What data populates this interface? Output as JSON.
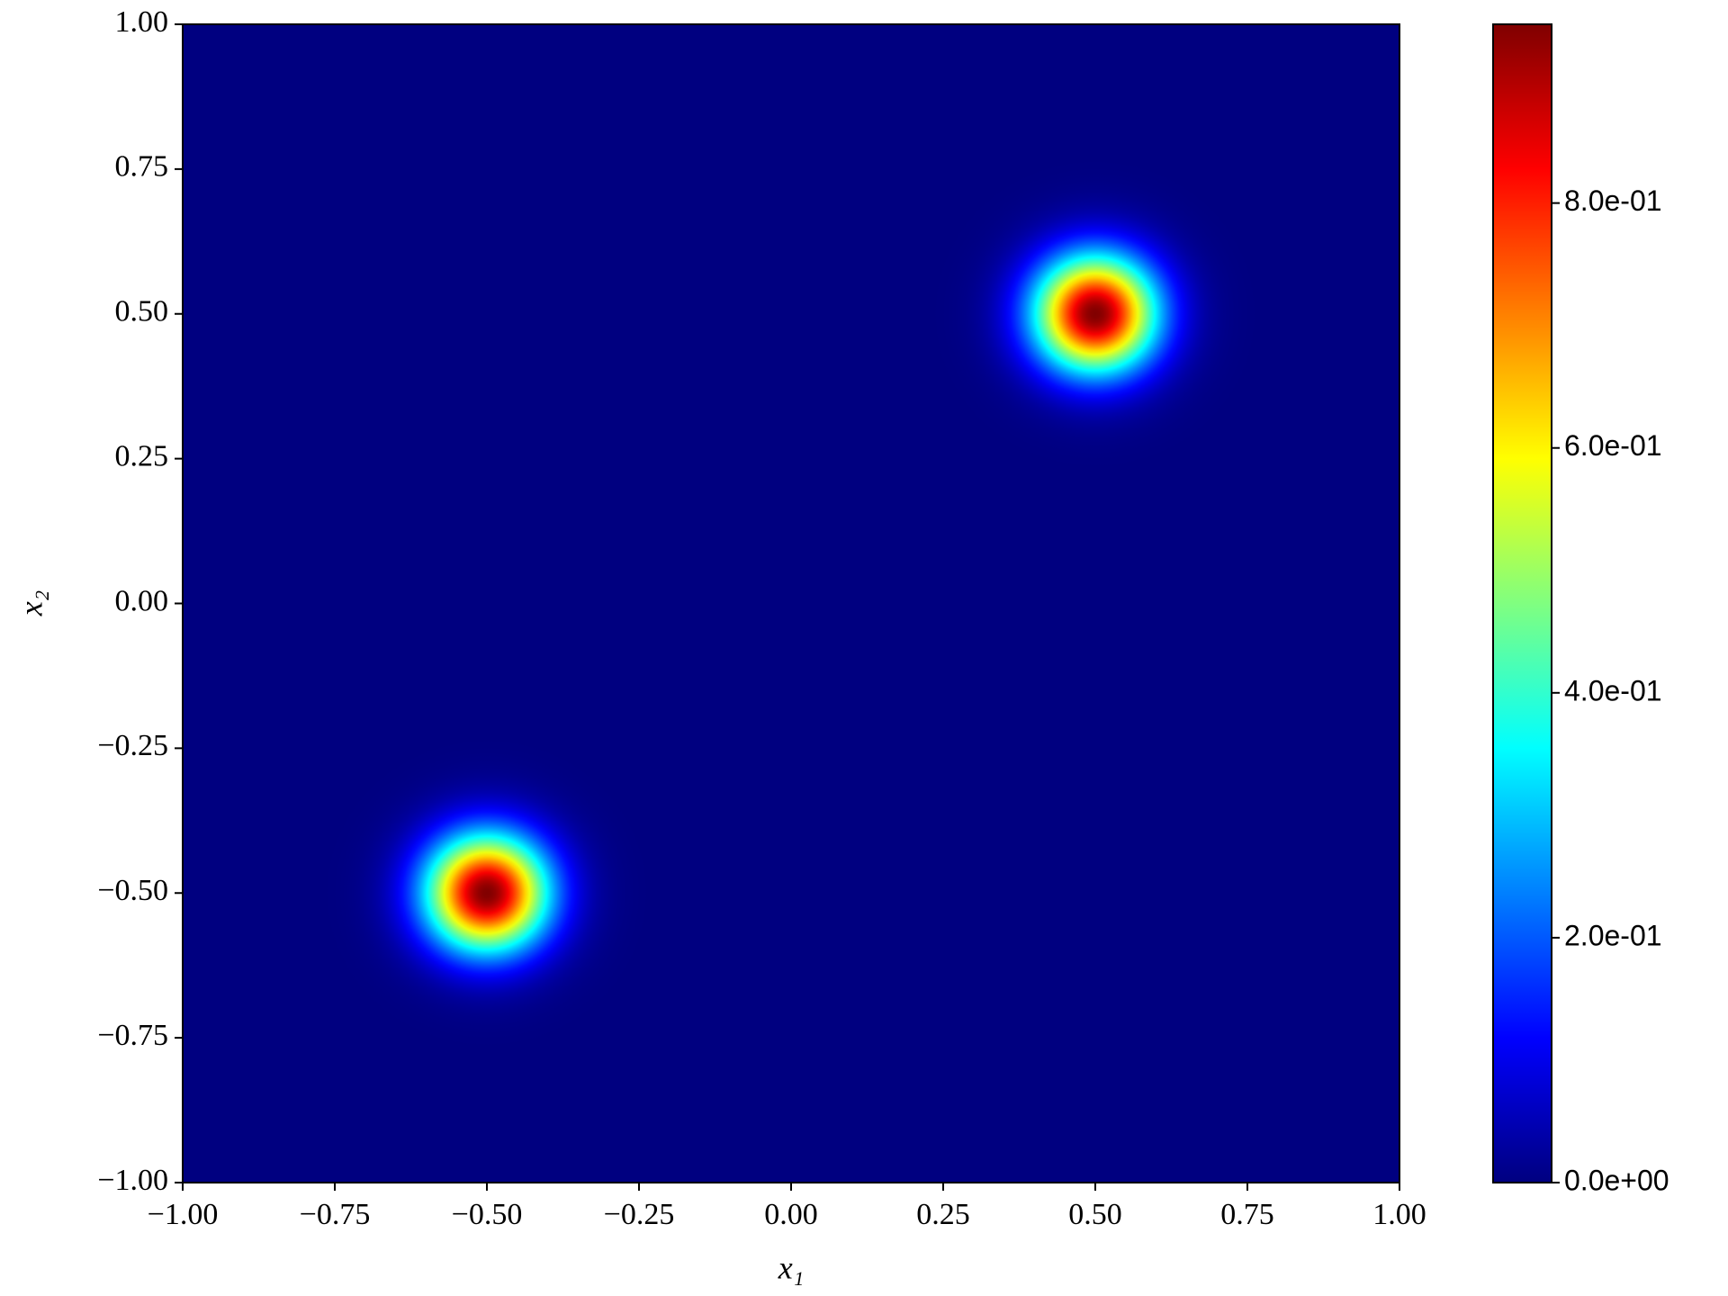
{
  "chart_data": {
    "type": "heatmap",
    "colormap": "jet",
    "xlabel": "x₁",
    "ylabel": "x₂",
    "xlim": [
      -1,
      1
    ],
    "ylim": [
      -1,
      1
    ],
    "xticks": [
      {
        "value": -1,
        "label": "−1.00"
      },
      {
        "value": -0.75,
        "label": "−0.75"
      },
      {
        "value": -0.5,
        "label": "−0.50"
      },
      {
        "value": -0.25,
        "label": "−0.25"
      },
      {
        "value": 0,
        "label": "0.00"
      },
      {
        "value": 0.25,
        "label": "0.25"
      },
      {
        "value": 0.5,
        "label": "0.50"
      },
      {
        "value": 0.75,
        "label": "0.75"
      },
      {
        "value": 1,
        "label": "1.00"
      }
    ],
    "yticks": [
      {
        "value": -1,
        "label": "−1.00"
      },
      {
        "value": -0.75,
        "label": "−0.75"
      },
      {
        "value": -0.5,
        "label": "−0.50"
      },
      {
        "value": -0.25,
        "label": "−0.25"
      },
      {
        "value": 0,
        "label": "0.00"
      },
      {
        "value": 0.25,
        "label": "0.25"
      },
      {
        "value": 0.5,
        "label": "0.50"
      },
      {
        "value": 0.75,
        "label": "0.75"
      },
      {
        "value": 1,
        "label": "1.00"
      }
    ],
    "clim": [
      0,
      0.946
    ],
    "cticks": [
      {
        "value": 0,
        "label": "0.0e+00"
      },
      {
        "value": 0.2,
        "label": "2.0e-01"
      },
      {
        "value": 0.4,
        "label": "4.0e-01"
      },
      {
        "value": 0.6,
        "label": "6.0e-01"
      },
      {
        "value": 0.8,
        "label": "8.0e-01"
      }
    ],
    "peaks": [
      {
        "x": 0.5,
        "y": 0.5,
        "amplitude": 0.946,
        "sigma": 0.07
      },
      {
        "x": -0.5,
        "y": -0.5,
        "amplitude": 0.946,
        "sigma": 0.07
      }
    ]
  }
}
